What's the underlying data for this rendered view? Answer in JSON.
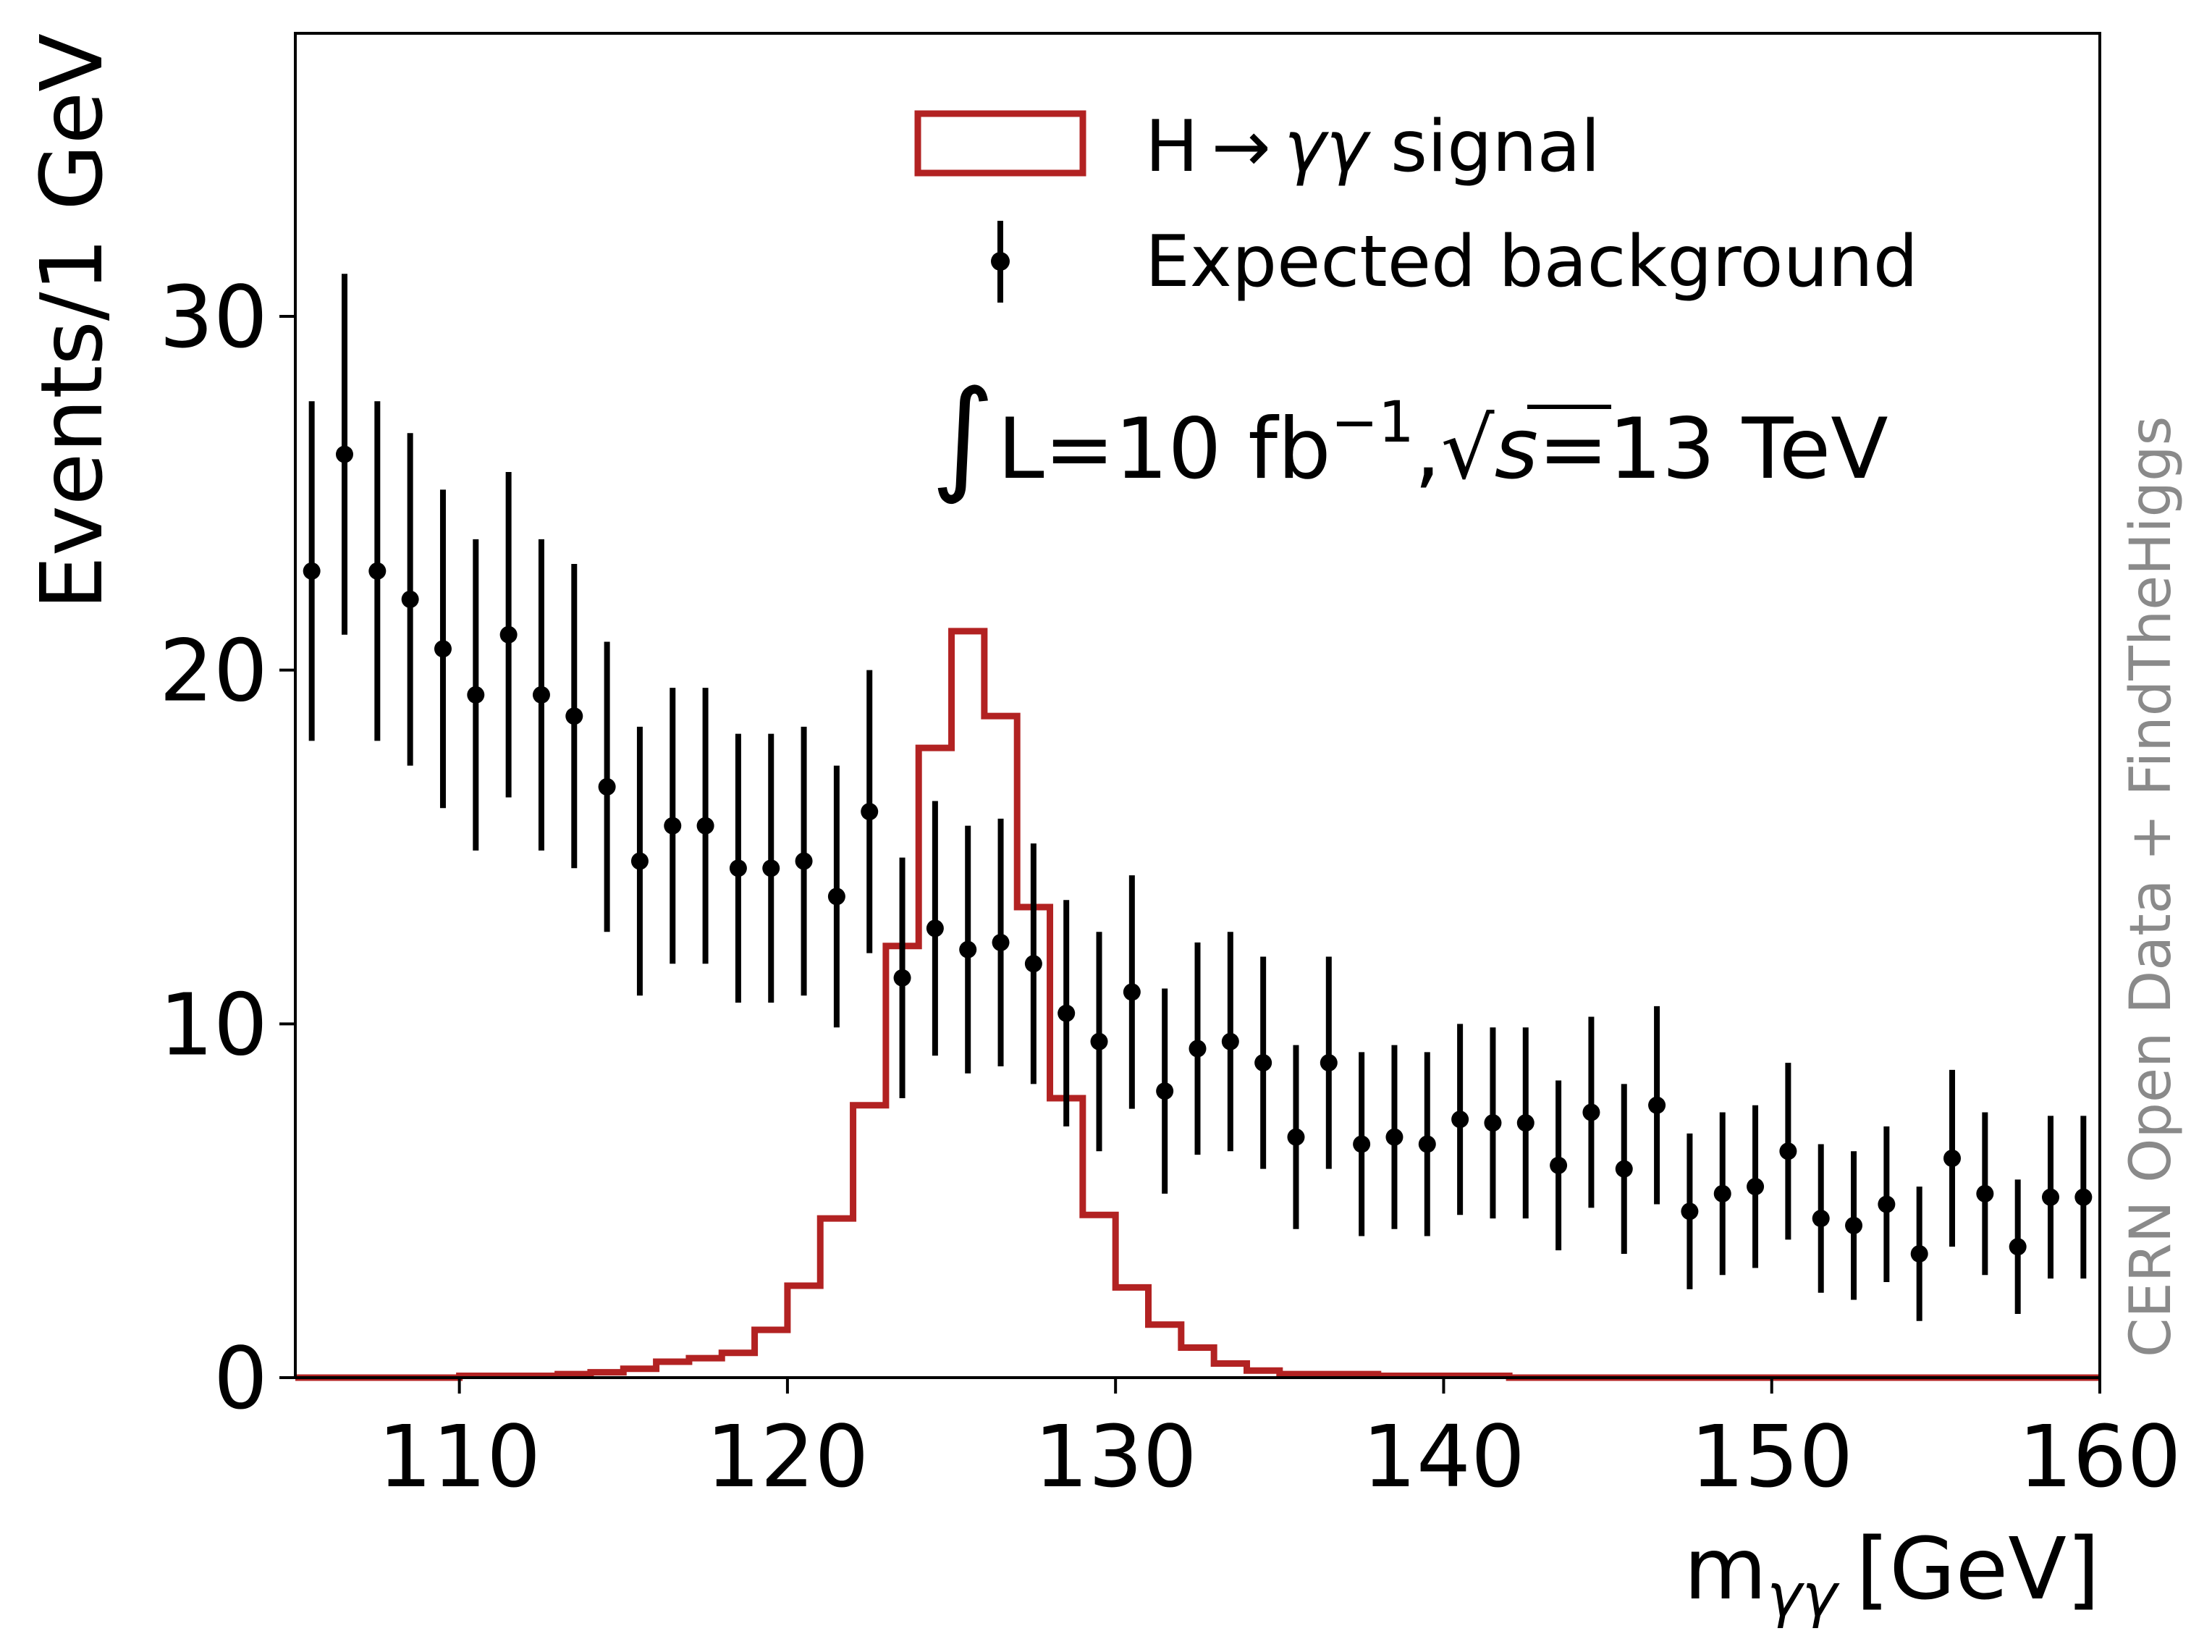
{
  "chart_data": {
    "type": "scatter",
    "xlabel": "m",
    "xlabel_sub": "γγ",
    "xlabel_unit": "[GeV]",
    "ylabel": "Events/1 GeV",
    "xlim": [
      105,
      160
    ],
    "ylim": [
      0,
      38
    ],
    "xticks": [
      110,
      120,
      130,
      140,
      150,
      160
    ],
    "yticks": [
      0,
      10,
      20,
      30
    ],
    "legend_position": "top-right",
    "legend": {
      "signal_label_pre": "H",
      "signal_label_arrow": "→",
      "signal_label_gg": "γγ",
      "signal_label_post": " signal",
      "background_label": "Expected background"
    },
    "annotation": {
      "integral": "∫",
      "lumi_text": "L=10 fb",
      "lumi_exp": "−1",
      "comma": ",",
      "sqrt_sign": "√",
      "s_symbol": "s",
      "energy": "=13 TeV"
    },
    "watermark": "CERN Open Data + FindTheHiggs",
    "colors": {
      "signal": "#b22222",
      "background": "#000000",
      "watermark": "#8a8a8a"
    },
    "signal": {
      "name": "H → γγ signal",
      "style": "step-histogram",
      "bin_edges": [
        105,
        106,
        107,
        108,
        109,
        110,
        111,
        112,
        113,
        114,
        115,
        116,
        117,
        118,
        119,
        120,
        121,
        122,
        123,
        124,
        125,
        126,
        127,
        128,
        129,
        130,
        131,
        132,
        133,
        134,
        135,
        136,
        137,
        138,
        139,
        140,
        141,
        142,
        143,
        144,
        145,
        146,
        147,
        148,
        149,
        150,
        151,
        152,
        153,
        154,
        155,
        156,
        157,
        158,
        159,
        160
      ],
      "values": [
        0.0,
        0.0,
        0.0,
        0.0,
        0.0,
        0.05,
        0.05,
        0.05,
        0.1,
        0.15,
        0.25,
        0.45,
        0.55,
        0.7,
        1.35,
        2.6,
        4.5,
        7.7,
        12.2,
        17.8,
        21.1,
        18.7,
        13.3,
        7.9,
        4.6,
        2.55,
        1.5,
        0.85,
        0.4,
        0.2,
        0.1,
        0.1,
        0.1,
        0.05,
        0.05,
        0.05,
        0.05,
        0.0,
        0.0,
        0.0,
        0.0,
        0.0,
        0.0,
        0.0,
        0.0,
        0.0,
        0.0,
        0.0,
        0.0,
        0.0,
        0.0,
        0.0,
        0.0,
        0.0,
        0.0
      ]
    },
    "background": {
      "name": "Expected background",
      "style": "points-with-errorbars",
      "x": [
        105.5,
        106.5,
        107.5,
        108.5,
        109.5,
        110.5,
        111.5,
        112.5,
        113.5,
        114.5,
        115.5,
        116.5,
        117.5,
        118.5,
        119.5,
        120.5,
        121.5,
        122.5,
        123.5,
        124.5,
        125.5,
        126.5,
        127.5,
        128.5,
        129.5,
        130.5,
        131.5,
        132.5,
        133.5,
        134.5,
        135.5,
        136.5,
        137.5,
        138.5,
        139.5,
        140.5,
        141.5,
        142.5,
        143.5,
        144.5,
        145.5,
        146.5,
        147.5,
        148.5,
        149.5,
        150.5,
        151.5,
        152.5,
        153.5,
        154.5,
        155.5,
        156.5,
        157.5,
        158.5,
        159.5
      ],
      "y": [
        22.8,
        26.1,
        22.8,
        22.0,
        20.6,
        19.3,
        21.0,
        19.3,
        18.7,
        16.7,
        14.6,
        15.6,
        15.6,
        14.4,
        14.4,
        14.6,
        13.6,
        16.0,
        11.3,
        12.7,
        12.1,
        12.3,
        11.7,
        10.3,
        9.5,
        10.9,
        8.1,
        9.3,
        9.5,
        8.9,
        6.8,
        8.9,
        6.6,
        6.8,
        6.6,
        7.3,
        7.2,
        7.2,
        6.0,
        7.5,
        5.9,
        7.7,
        4.7,
        5.2,
        5.4,
        6.4,
        4.5,
        4.3,
        4.9,
        3.5,
        6.2,
        5.2,
        3.7,
        5.1,
        5.1
      ],
      "yerr": [
        4.8,
        5.1,
        4.8,
        4.7,
        4.5,
        4.4,
        4.6,
        4.4,
        4.3,
        4.1,
        3.8,
        3.9,
        3.9,
        3.8,
        3.8,
        3.8,
        3.7,
        4.0,
        3.4,
        3.6,
        3.5,
        3.5,
        3.4,
        3.2,
        3.1,
        3.3,
        2.9,
        3.0,
        3.1,
        3.0,
        2.6,
        3.0,
        2.6,
        2.6,
        2.6,
        2.7,
        2.7,
        2.7,
        2.4,
        2.7,
        2.4,
        2.8,
        2.2,
        2.3,
        2.3,
        2.5,
        2.1,
        2.1,
        2.2,
        1.9,
        2.5,
        2.3,
        1.9,
        2.3,
        2.3
      ]
    }
  }
}
